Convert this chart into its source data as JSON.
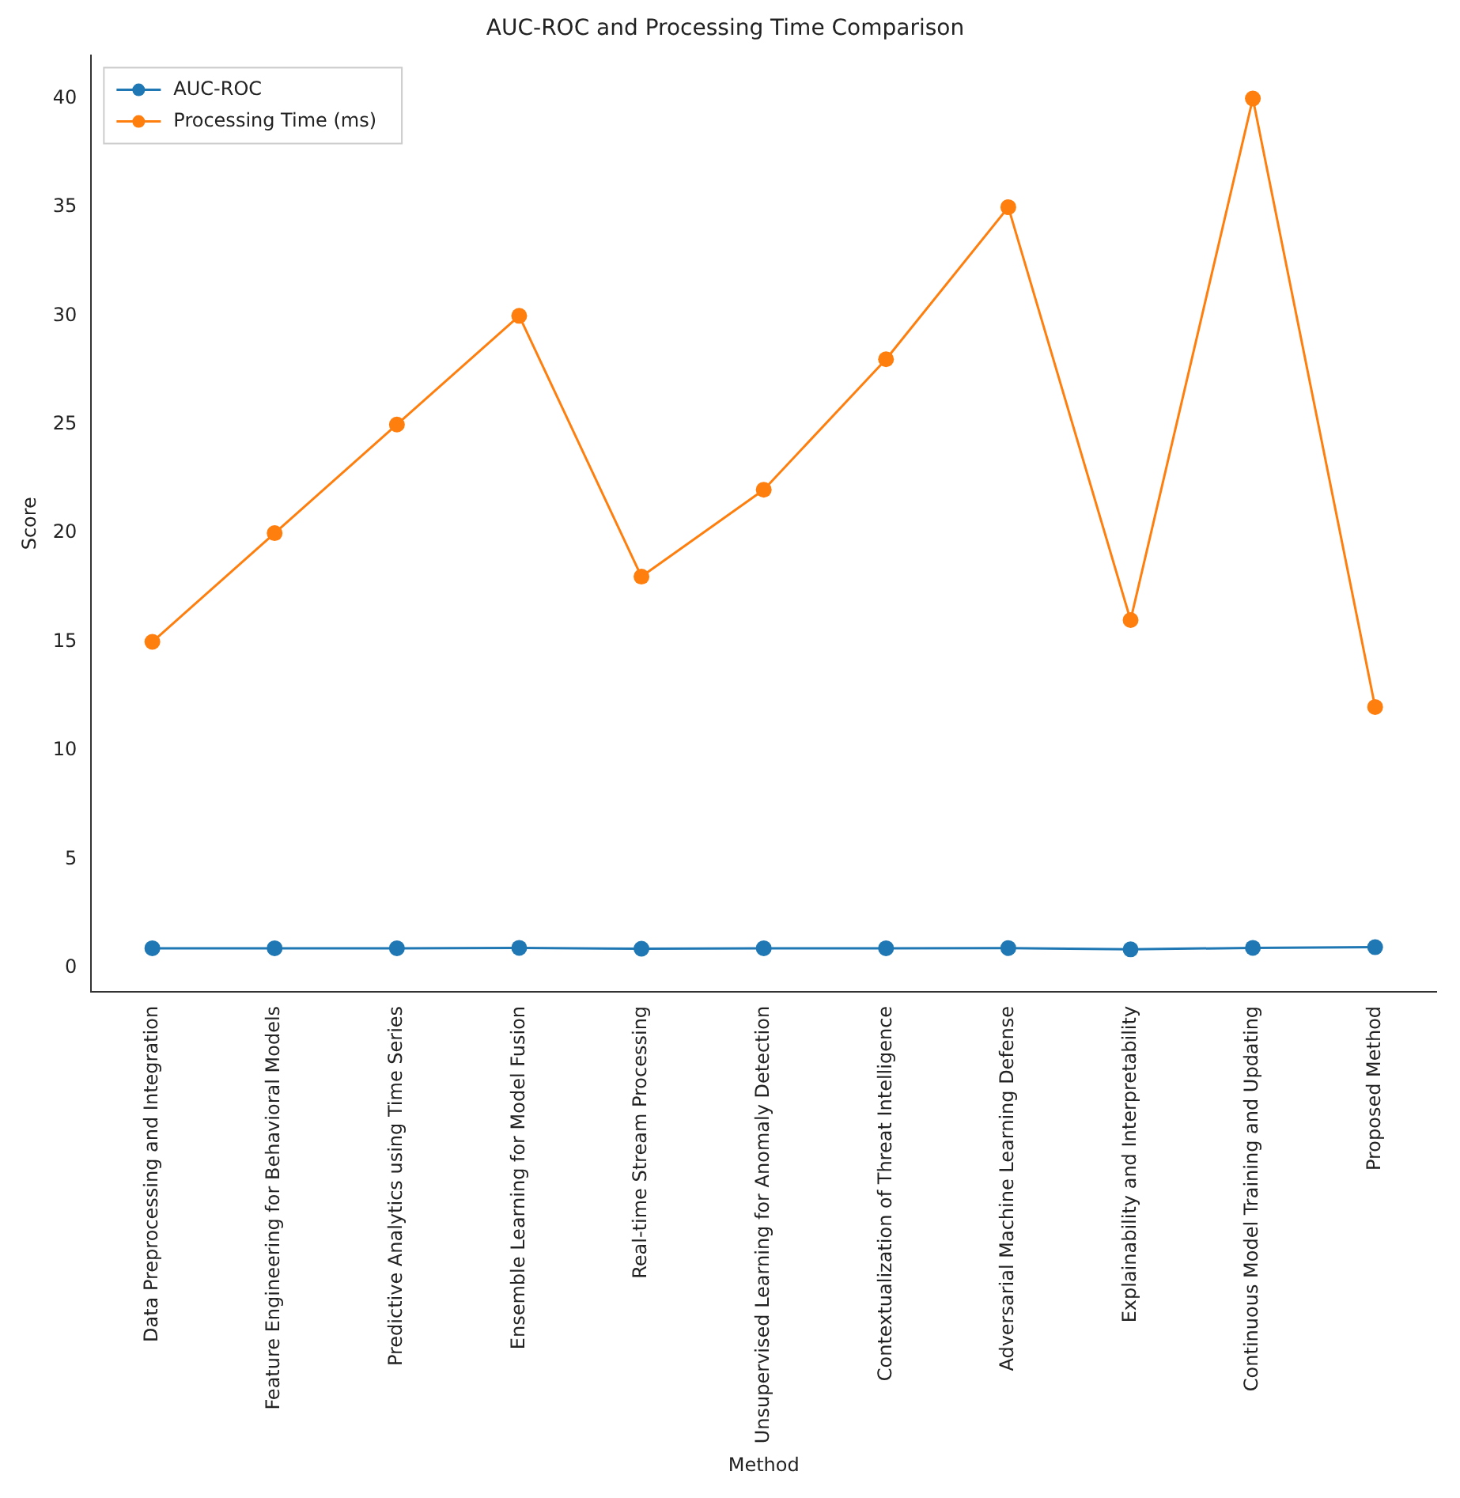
{
  "chart_data": {
    "type": "line",
    "title": "AUC-ROC and Processing Time Comparison",
    "xlabel": "Method",
    "ylabel": "Score",
    "categories": [
      "Data Preprocessing and Integration",
      "Feature Engineering for Behavioral Models",
      "Predictive Analytics using Time Series",
      "Ensemble Learning for Model Fusion",
      "Real-time Stream Processing",
      "Unsupervised Learning for Anomaly Detection",
      "Contextualization of Threat Intelligence",
      "Adversarial Machine Learning Defense",
      "Explainability and Interpretability",
      "Continuous Model Training and Updating",
      "Proposed Method"
    ],
    "series": [
      {
        "name": "AUC-ROC",
        "color": "#1f77b4",
        "values": [
          0.9,
          0.9,
          0.9,
          0.92,
          0.88,
          0.9,
          0.9,
          0.91,
          0.85,
          0.92,
          0.95
        ]
      },
      {
        "name": "Processing Time (ms)",
        "color": "#ff7f0e",
        "values": [
          15,
          20,
          25,
          30,
          18,
          22,
          28,
          35,
          16,
          40,
          12
        ]
      }
    ],
    "ylim": [
      -1.1,
      42
    ],
    "yticks": [
      0,
      5,
      10,
      15,
      20,
      25,
      30,
      35,
      40
    ],
    "grid": false,
    "legend": "top left",
    "marker": "circle",
    "line_style": "solid"
  }
}
